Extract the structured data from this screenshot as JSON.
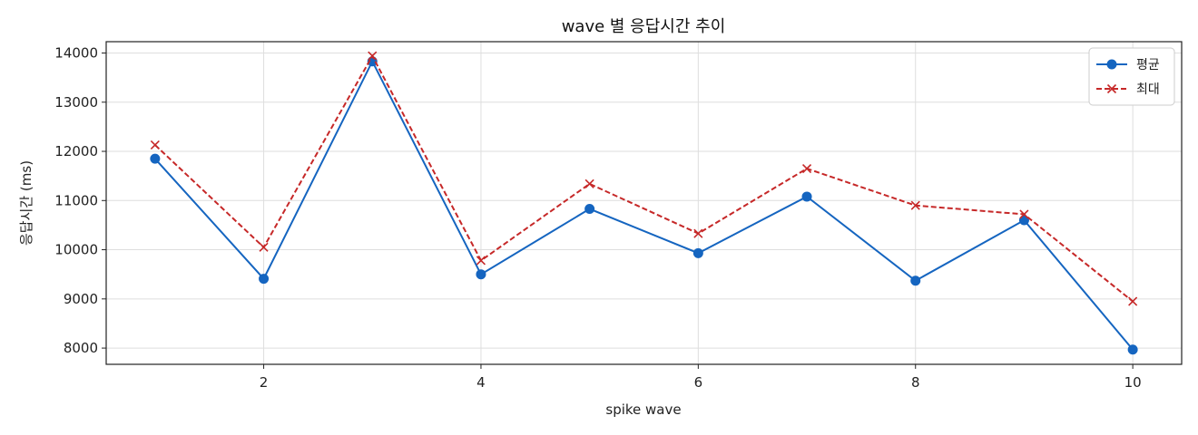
{
  "chart_data": {
    "type": "line",
    "title": "wave 별 응답시간 추이",
    "xlabel": "spike wave",
    "ylabel": "응답시간 (ms)",
    "x": [
      1,
      2,
      3,
      4,
      5,
      6,
      7,
      8,
      9,
      10
    ],
    "xlim": [
      0.55,
      10.45
    ],
    "ylim": [
      7670,
      14230
    ],
    "xticks": [
      2,
      4,
      6,
      8,
      10
    ],
    "yticks": [
      8000,
      9000,
      10000,
      11000,
      12000,
      13000,
      14000
    ],
    "grid": true,
    "legend_position": "top-right",
    "series": [
      {
        "name": "평균",
        "color": "#1565c0",
        "line_style": "solid",
        "marker": "circle",
        "values": [
          11850,
          9410,
          13830,
          9500,
          10830,
          9930,
          11080,
          9370,
          10600,
          7970
        ]
      },
      {
        "name": "최대",
        "color": "#c62828",
        "line_style": "dashed",
        "marker": "x",
        "values": [
          12130,
          10050,
          13940,
          9780,
          11340,
          10330,
          11650,
          10900,
          10720,
          8950
        ]
      }
    ]
  }
}
